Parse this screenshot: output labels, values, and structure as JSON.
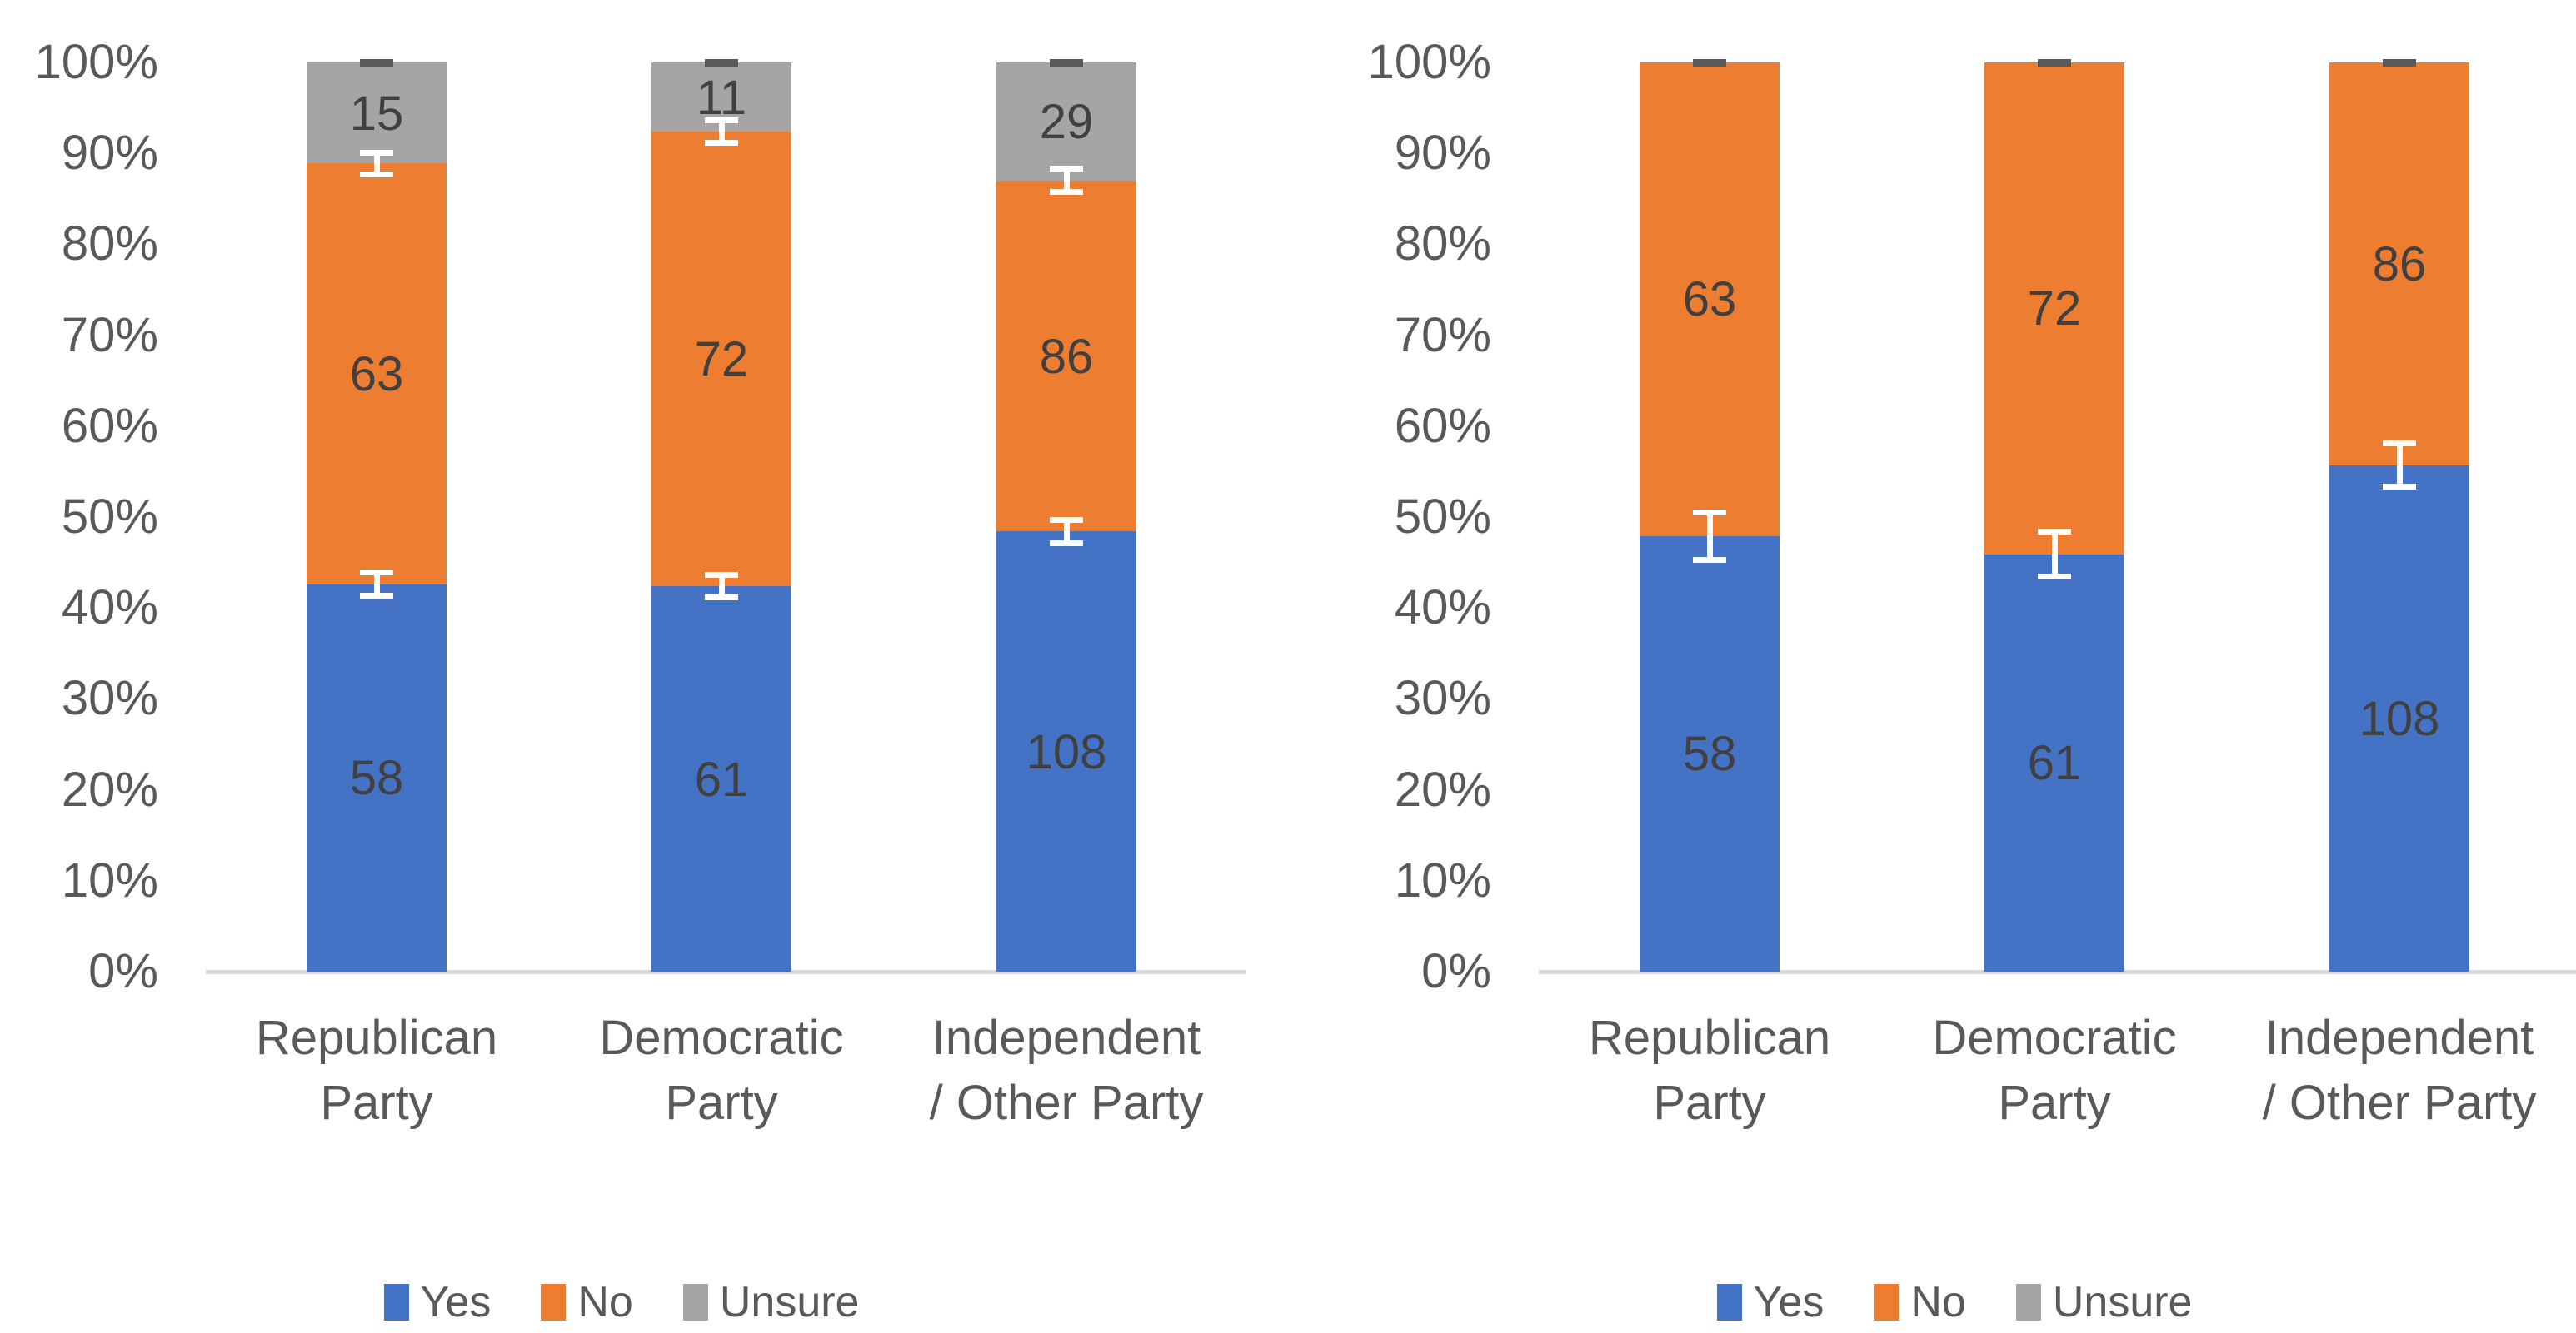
{
  "style": {
    "background_color": "#FFFFFF",
    "axis_text_color": "#595959",
    "category_text_color": "#595959",
    "data_label_color": "#404040",
    "axis_line_color": "#D9D9D9",
    "error_bar_white": "#FFFFFF",
    "error_cap_dark": "#595959",
    "series_colors": {
      "Yes": "#4472C4",
      "No": "#ED7D31",
      "Unsure": "#A5A5A5"
    }
  },
  "legend": {
    "items": [
      {
        "label": "Yes",
        "color": "#4472C4"
      },
      {
        "label": "No",
        "color": "#ED7D31"
      },
      {
        "label": "Unsure",
        "color": "#A5A5A5"
      }
    ]
  },
  "chart_data": [
    {
      "type": "bar",
      "subtype": "stacked-100pct-column",
      "title": "",
      "xlabel": "",
      "ylabel": "",
      "ylim": [
        0,
        100
      ],
      "grid": false,
      "legend_position": "bottom",
      "y_axis": {
        "ticks": [
          "100%",
          "90%",
          "80%",
          "70%",
          "60%",
          "50%",
          "40%",
          "30%",
          "20%",
          "10%",
          "0%"
        ]
      },
      "categories": [
        "Republican Party",
        "Democratic Party",
        "Independent / Other Party"
      ],
      "series": [
        {
          "name": "Yes",
          "values": [
            58,
            61,
            108
          ]
        },
        {
          "name": "No",
          "values": [
            63,
            72,
            86
          ]
        },
        {
          "name": "Unsure",
          "values": [
            15,
            11,
            29
          ]
        }
      ],
      "bars": [
        {
          "category_lines": [
            "Republican",
            "Party"
          ],
          "segments": [
            {
              "series": "Yes",
              "value": 58,
              "pct": 42.6
            },
            {
              "series": "No",
              "value": 63,
              "pct": 46.3
            },
            {
              "series": "Unsure",
              "value": 15,
              "pct": 11.1
            }
          ],
          "error_bars": [
            {
              "center_pct": 42.6,
              "plus": 1.6,
              "minus": 1.6
            },
            {
              "center_pct": 88.9,
              "plus": 1.5,
              "minus": 1.5
            }
          ],
          "top_cap": true
        },
        {
          "category_lines": [
            "Democratic",
            "Party"
          ],
          "segments": [
            {
              "series": "Yes",
              "value": 61,
              "pct": 42.4
            },
            {
              "series": "No",
              "value": 72,
              "pct": 50.0
            },
            {
              "series": "Unsure",
              "value": 11,
              "pct": 7.6
            }
          ],
          "error_bars": [
            {
              "center_pct": 42.4,
              "plus": 1.6,
              "minus": 1.6
            },
            {
              "center_pct": 92.4,
              "plus": 1.6,
              "minus": 1.6
            }
          ],
          "top_cap": true
        },
        {
          "category_lines": [
            "Independent",
            "/ Other Party"
          ],
          "segments": [
            {
              "series": "Yes",
              "value": 108,
              "pct": 48.4
            },
            {
              "series": "No",
              "value": 86,
              "pct": 38.6
            },
            {
              "series": "Unsure",
              "value": 29,
              "pct": 13.0
            }
          ],
          "error_bars": [
            {
              "center_pct": 48.4,
              "plus": 1.6,
              "minus": 1.6
            },
            {
              "center_pct": 87.0,
              "plus": 1.6,
              "minus": 1.6
            }
          ],
          "top_cap": true
        }
      ]
    },
    {
      "type": "bar",
      "subtype": "stacked-100pct-column",
      "title": "",
      "xlabel": "",
      "ylabel": "",
      "ylim": [
        0,
        100
      ],
      "grid": false,
      "legend_position": "bottom",
      "y_axis": {
        "ticks": [
          "100%",
          "90%",
          "80%",
          "70%",
          "60%",
          "50%",
          "40%",
          "30%",
          "20%",
          "10%",
          "0%"
        ]
      },
      "categories": [
        "Republican Party",
        "Democratic Party",
        "Independent / Other Party"
      ],
      "series": [
        {
          "name": "Yes",
          "values": [
            58,
            61,
            108
          ]
        },
        {
          "name": "No",
          "values": [
            63,
            72,
            86
          ]
        },
        {
          "name": "Unsure",
          "values": [
            0,
            0,
            0
          ]
        }
      ],
      "bars": [
        {
          "category_lines": [
            "Republican",
            "Party"
          ],
          "segments": [
            {
              "series": "Yes",
              "value": 58,
              "pct": 47.9
            },
            {
              "series": "No",
              "value": 63,
              "pct": 52.1
            },
            {
              "series": "Unsure",
              "value": 0,
              "pct": 0
            }
          ],
          "error_bars": [
            {
              "center_pct": 47.9,
              "plus": 2.9,
              "minus": 2.9
            }
          ],
          "top_cap": true
        },
        {
          "category_lines": [
            "Democratic",
            "Party"
          ],
          "segments": [
            {
              "series": "Yes",
              "value": 61,
              "pct": 45.9
            },
            {
              "series": "No",
              "value": 72,
              "pct": 54.1
            },
            {
              "series": "Unsure",
              "value": 0,
              "pct": 0
            }
          ],
          "error_bars": [
            {
              "center_pct": 45.9,
              "plus": 2.8,
              "minus": 2.8
            }
          ],
          "top_cap": true
        },
        {
          "category_lines": [
            "Independent",
            "/ Other Party"
          ],
          "segments": [
            {
              "series": "Yes",
              "value": 108,
              "pct": 55.7
            },
            {
              "series": "No",
              "value": 86,
              "pct": 44.3
            },
            {
              "series": "Unsure",
              "value": 0,
              "pct": 0
            }
          ],
          "error_bars": [
            {
              "center_pct": 55.7,
              "plus": 2.7,
              "minus": 2.7
            }
          ],
          "top_cap": true
        }
      ]
    }
  ]
}
